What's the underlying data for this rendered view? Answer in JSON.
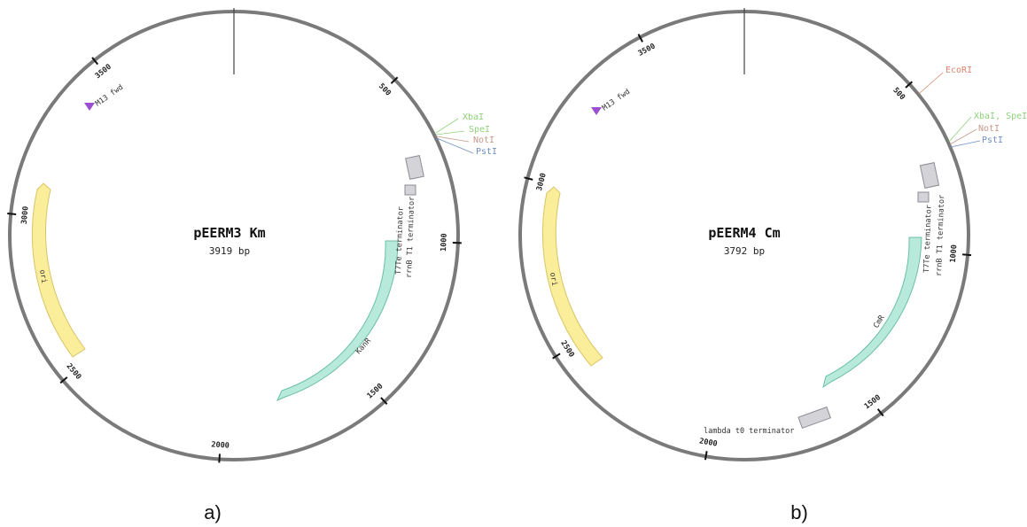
{
  "maps": [
    {
      "panel_label": "a)",
      "name": "pEERM3 Km",
      "size_label": "3919 bp",
      "length": 3919,
      "ticks": [
        {
          "label": "500",
          "pos": 500
        },
        {
          "label": "1000",
          "pos": 1000
        },
        {
          "label": "1500",
          "pos": 1500
        },
        {
          "label": "2000",
          "pos": 2000
        },
        {
          "label": "2500",
          "pos": 2500
        },
        {
          "label": "3000",
          "pos": 3000
        },
        {
          "label": "3500",
          "pos": 3500
        }
      ],
      "sites": [
        {
          "label": "XbaI",
          "color": "#8fd17a"
        },
        {
          "label": "SpeI",
          "color": "#8fd17a"
        },
        {
          "label": "NotI",
          "color": "#c39a8c"
        },
        {
          "label": "PstI",
          "color": "#6f8fc4"
        }
      ],
      "features": [
        {
          "label": "ori",
          "color": "#fbee9b",
          "stroke": "#d8c465",
          "type": "origin"
        },
        {
          "label": "KanR",
          "color": "#b8eadc",
          "stroke": "#6bbfa5",
          "type": "resistance"
        },
        {
          "label": "T7Te terminator",
          "color": "#d3d3d8",
          "stroke": "#8c8c96",
          "type": "terminator"
        },
        {
          "label": "rrnB T1 terminator",
          "color": "#d3d3d8",
          "stroke": "#8c8c96",
          "type": "terminator"
        },
        {
          "label": "M13 fwd",
          "color": "#9b4fd0",
          "stroke": "#9b4fd0",
          "type": "primer"
        }
      ]
    },
    {
      "panel_label": "b)",
      "name": "pEERM4 Cm",
      "size_label": "3792 bp",
      "length": 3792,
      "ticks": [
        {
          "label": "500",
          "pos": 500
        },
        {
          "label": "1000",
          "pos": 1000
        },
        {
          "label": "1500",
          "pos": 1500
        },
        {
          "label": "2000",
          "pos": 2000
        },
        {
          "label": "2500",
          "pos": 2500
        },
        {
          "label": "3000",
          "pos": 3000
        },
        {
          "label": "3500",
          "pos": 3500
        }
      ],
      "sites": [
        {
          "label": "EcoRI",
          "color": "#d9866b"
        },
        {
          "label": "XbaI, SpeI",
          "color": "#8fd17a"
        },
        {
          "label": "NotI",
          "color": "#c39a8c"
        },
        {
          "label": "PstI",
          "color": "#6f8fc4"
        }
      ],
      "features": [
        {
          "label": "ori",
          "color": "#fbee9b",
          "stroke": "#d8c465",
          "type": "origin"
        },
        {
          "label": "CmR",
          "color": "#b8eadc",
          "stroke": "#6bbfa5",
          "type": "resistance"
        },
        {
          "label": "T7Te terminator",
          "color": "#d3d3d8",
          "stroke": "#8c8c96",
          "type": "terminator"
        },
        {
          "label": "rrnB T1 terminator",
          "color": "#d3d3d8",
          "stroke": "#8c8c96",
          "type": "terminator"
        },
        {
          "label": "lambda t0 terminator",
          "color": "#d3d3d8",
          "stroke": "#8c8c96",
          "type": "terminator"
        },
        {
          "label": "M13 fwd",
          "color": "#9b4fd0",
          "stroke": "#9b4fd0",
          "type": "primer"
        }
      ]
    }
  ]
}
